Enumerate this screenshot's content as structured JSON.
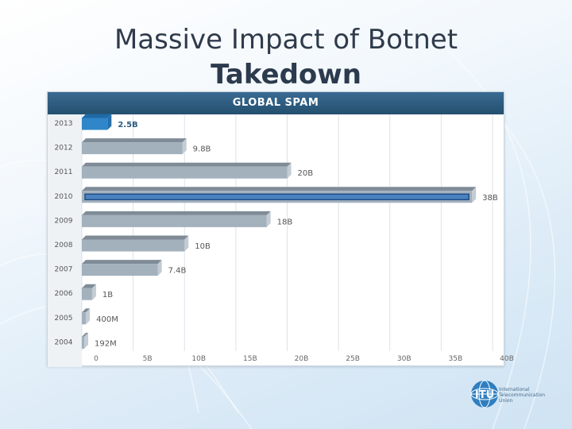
{
  "slide": {
    "title": "Massive Impact of Botnet",
    "subtitle": "Takedown"
  },
  "chart_data": {
    "type": "bar",
    "orientation": "horizontal",
    "title": "GLOBAL SPAM",
    "categories": [
      "2013",
      "2012",
      "2011",
      "2010",
      "2009",
      "2008",
      "2007",
      "2006",
      "2005",
      "2004"
    ],
    "values": [
      2.5,
      9.8,
      20,
      38,
      18,
      10,
      7.4,
      1,
      0.4,
      0.192
    ],
    "value_labels": [
      "2.5B",
      "9.8B",
      "20B",
      "38B",
      "18B",
      "10B",
      "7.4B",
      "1B",
      "400M",
      "192M"
    ],
    "xticks": [
      "0",
      "5B",
      "10B",
      "15B",
      "20B",
      "25B",
      "30B",
      "35B",
      "40B"
    ],
    "xtick_values": [
      0,
      5,
      10,
      15,
      20,
      25,
      30,
      35,
      40
    ],
    "xlim": [
      0,
      40
    ],
    "grid": true,
    "colors": {
      "highlight": "#2f86c8",
      "bar": "#a3b1bd",
      "bar_top": "#7f8c97",
      "peak_outline": "#1f4d86",
      "header": "#2c5a7e",
      "highlight_label": "#2c5a7e",
      "label": "#555555"
    },
    "highlight_category": "2013",
    "emphasized_category": "2010"
  },
  "logo": {
    "name": "ITU",
    "icon": "itu-globe-logo",
    "text_lines": [
      "International",
      "Telecommunication",
      "Union"
    ]
  }
}
